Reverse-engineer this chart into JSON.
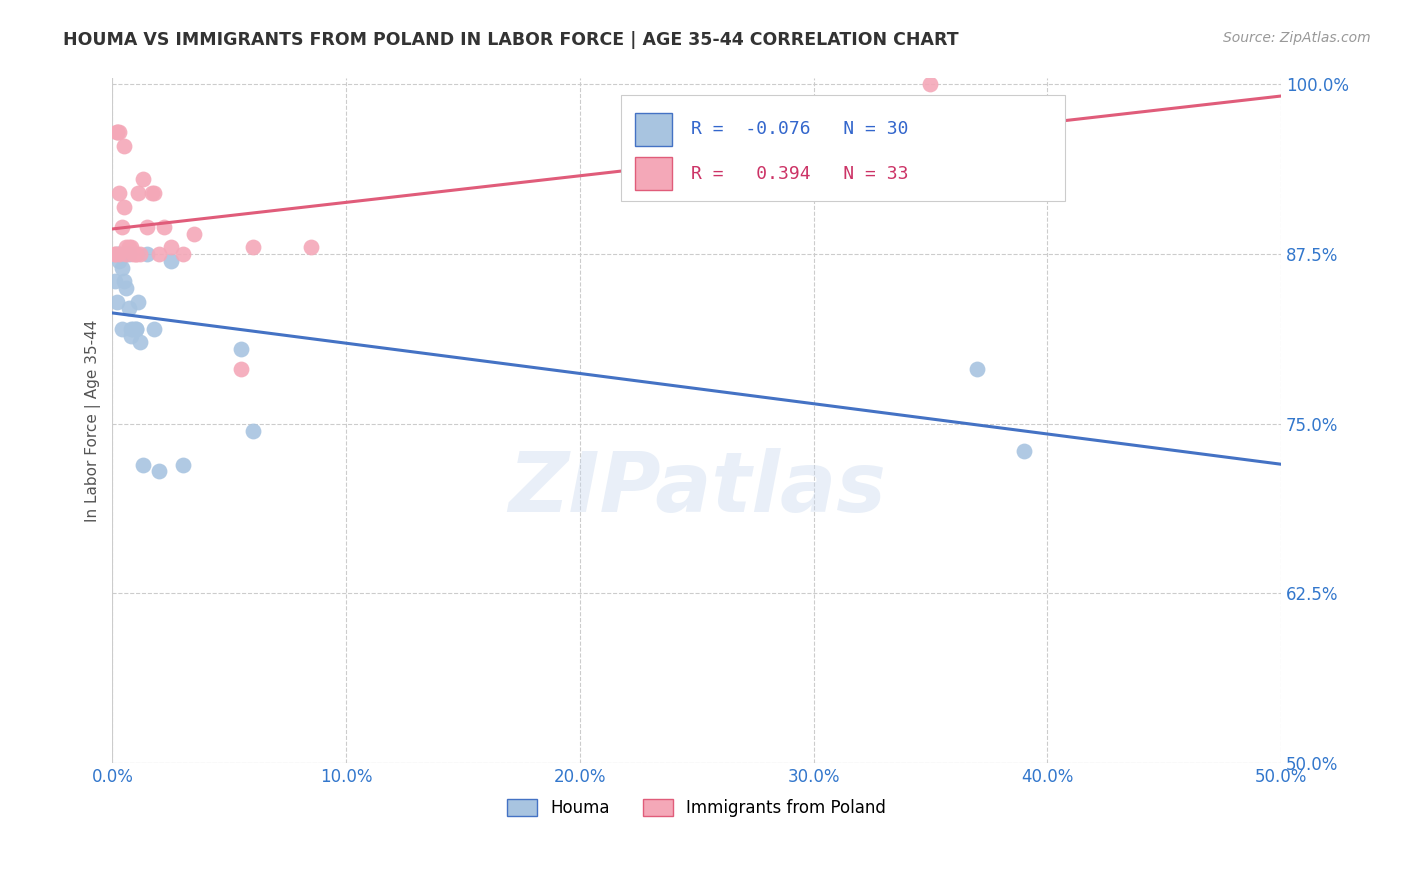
{
  "title": "HOUMA VS IMMIGRANTS FROM POLAND IN LABOR FORCE | AGE 35-44 CORRELATION CHART",
  "source": "Source: ZipAtlas.com",
  "ylabel": "In Labor Force | Age 35-44",
  "xmin": 0.0,
  "xmax": 0.5,
  "ymin": 0.5,
  "ymax": 1.005,
  "xtick_labels": [
    "0.0%",
    "10.0%",
    "20.0%",
    "30.0%",
    "40.0%",
    "50.0%"
  ],
  "xtick_vals": [
    0.0,
    0.1,
    0.2,
    0.3,
    0.4,
    0.5
  ],
  "ytick_labels": [
    "50.0%",
    "62.5%",
    "75.0%",
    "87.5%",
    "100.0%"
  ],
  "ytick_vals": [
    0.5,
    0.625,
    0.75,
    0.875,
    1.0
  ],
  "legend_labels": [
    "Houma",
    "Immigrants from Poland"
  ],
  "houma_R": -0.076,
  "houma_N": 30,
  "poland_R": 0.394,
  "poland_N": 33,
  "houma_color": "#a8c4e0",
  "poland_color": "#f4a8b8",
  "houma_line_color": "#4472c4",
  "poland_line_color": "#e05c7a",
  "watermark": "ZIPatlas",
  "houma_x": [
    0.001,
    0.002,
    0.002,
    0.003,
    0.003,
    0.004,
    0.004,
    0.005,
    0.005,
    0.006,
    0.006,
    0.007,
    0.007,
    0.008,
    0.008,
    0.009,
    0.01,
    0.01,
    0.011,
    0.012,
    0.013,
    0.015,
    0.018,
    0.02,
    0.025,
    0.03,
    0.055,
    0.06,
    0.37,
    0.39
  ],
  "houma_y": [
    0.855,
    0.875,
    0.84,
    0.875,
    0.87,
    0.865,
    0.82,
    0.875,
    0.855,
    0.875,
    0.85,
    0.875,
    0.835,
    0.82,
    0.815,
    0.82,
    0.82,
    0.82,
    0.84,
    0.81,
    0.72,
    0.875,
    0.82,
    0.715,
    0.87,
    0.72,
    0.805,
    0.745,
    0.79,
    0.73
  ],
  "poland_x": [
    0.001,
    0.001,
    0.002,
    0.002,
    0.003,
    0.003,
    0.003,
    0.004,
    0.005,
    0.005,
    0.006,
    0.006,
    0.007,
    0.008,
    0.009,
    0.01,
    0.01,
    0.011,
    0.012,
    0.013,
    0.015,
    0.017,
    0.018,
    0.02,
    0.022,
    0.025,
    0.03,
    0.035,
    0.055,
    0.06,
    0.085,
    0.35,
    0.39
  ],
  "poland_y": [
    0.875,
    0.875,
    0.965,
    0.965,
    0.965,
    0.92,
    0.875,
    0.895,
    0.955,
    0.91,
    0.88,
    0.875,
    0.88,
    0.88,
    0.875,
    0.875,
    0.875,
    0.92,
    0.875,
    0.93,
    0.895,
    0.92,
    0.92,
    0.875,
    0.895,
    0.88,
    0.875,
    0.89,
    0.79,
    0.88,
    0.88,
    1.0,
    0.965
  ]
}
